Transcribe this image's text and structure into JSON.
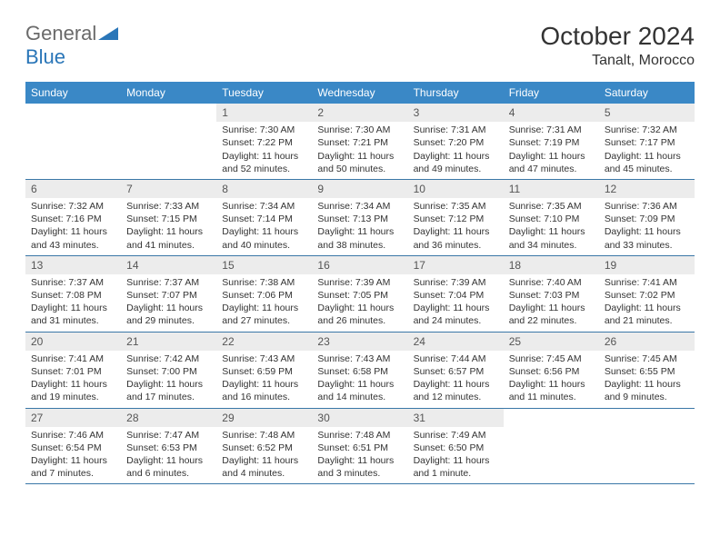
{
  "logo": {
    "text_a": "General",
    "text_b": "Blue"
  },
  "title": "October 2024",
  "location": "Tanalt, Morocco",
  "colors": {
    "header_bg": "#3a88c6",
    "header_text": "#ffffff",
    "row_divider": "#3a77a7",
    "daynum_bg": "#ececec",
    "text": "#333333",
    "logo_gray": "#6a6a6a",
    "logo_blue": "#2a76b8"
  },
  "days_of_week": [
    "Sunday",
    "Monday",
    "Tuesday",
    "Wednesday",
    "Thursday",
    "Friday",
    "Saturday"
  ],
  "weeks": [
    [
      null,
      null,
      {
        "n": "1",
        "sr": "Sunrise: 7:30 AM",
        "ss": "Sunset: 7:22 PM",
        "dl": "Daylight: 11 hours and 52 minutes."
      },
      {
        "n": "2",
        "sr": "Sunrise: 7:30 AM",
        "ss": "Sunset: 7:21 PM",
        "dl": "Daylight: 11 hours and 50 minutes."
      },
      {
        "n": "3",
        "sr": "Sunrise: 7:31 AM",
        "ss": "Sunset: 7:20 PM",
        "dl": "Daylight: 11 hours and 49 minutes."
      },
      {
        "n": "4",
        "sr": "Sunrise: 7:31 AM",
        "ss": "Sunset: 7:19 PM",
        "dl": "Daylight: 11 hours and 47 minutes."
      },
      {
        "n": "5",
        "sr": "Sunrise: 7:32 AM",
        "ss": "Sunset: 7:17 PM",
        "dl": "Daylight: 11 hours and 45 minutes."
      }
    ],
    [
      {
        "n": "6",
        "sr": "Sunrise: 7:32 AM",
        "ss": "Sunset: 7:16 PM",
        "dl": "Daylight: 11 hours and 43 minutes."
      },
      {
        "n": "7",
        "sr": "Sunrise: 7:33 AM",
        "ss": "Sunset: 7:15 PM",
        "dl": "Daylight: 11 hours and 41 minutes."
      },
      {
        "n": "8",
        "sr": "Sunrise: 7:34 AM",
        "ss": "Sunset: 7:14 PM",
        "dl": "Daylight: 11 hours and 40 minutes."
      },
      {
        "n": "9",
        "sr": "Sunrise: 7:34 AM",
        "ss": "Sunset: 7:13 PM",
        "dl": "Daylight: 11 hours and 38 minutes."
      },
      {
        "n": "10",
        "sr": "Sunrise: 7:35 AM",
        "ss": "Sunset: 7:12 PM",
        "dl": "Daylight: 11 hours and 36 minutes."
      },
      {
        "n": "11",
        "sr": "Sunrise: 7:35 AM",
        "ss": "Sunset: 7:10 PM",
        "dl": "Daylight: 11 hours and 34 minutes."
      },
      {
        "n": "12",
        "sr": "Sunrise: 7:36 AM",
        "ss": "Sunset: 7:09 PM",
        "dl": "Daylight: 11 hours and 33 minutes."
      }
    ],
    [
      {
        "n": "13",
        "sr": "Sunrise: 7:37 AM",
        "ss": "Sunset: 7:08 PM",
        "dl": "Daylight: 11 hours and 31 minutes."
      },
      {
        "n": "14",
        "sr": "Sunrise: 7:37 AM",
        "ss": "Sunset: 7:07 PM",
        "dl": "Daylight: 11 hours and 29 minutes."
      },
      {
        "n": "15",
        "sr": "Sunrise: 7:38 AM",
        "ss": "Sunset: 7:06 PM",
        "dl": "Daylight: 11 hours and 27 minutes."
      },
      {
        "n": "16",
        "sr": "Sunrise: 7:39 AM",
        "ss": "Sunset: 7:05 PM",
        "dl": "Daylight: 11 hours and 26 minutes."
      },
      {
        "n": "17",
        "sr": "Sunrise: 7:39 AM",
        "ss": "Sunset: 7:04 PM",
        "dl": "Daylight: 11 hours and 24 minutes."
      },
      {
        "n": "18",
        "sr": "Sunrise: 7:40 AM",
        "ss": "Sunset: 7:03 PM",
        "dl": "Daylight: 11 hours and 22 minutes."
      },
      {
        "n": "19",
        "sr": "Sunrise: 7:41 AM",
        "ss": "Sunset: 7:02 PM",
        "dl": "Daylight: 11 hours and 21 minutes."
      }
    ],
    [
      {
        "n": "20",
        "sr": "Sunrise: 7:41 AM",
        "ss": "Sunset: 7:01 PM",
        "dl": "Daylight: 11 hours and 19 minutes."
      },
      {
        "n": "21",
        "sr": "Sunrise: 7:42 AM",
        "ss": "Sunset: 7:00 PM",
        "dl": "Daylight: 11 hours and 17 minutes."
      },
      {
        "n": "22",
        "sr": "Sunrise: 7:43 AM",
        "ss": "Sunset: 6:59 PM",
        "dl": "Daylight: 11 hours and 16 minutes."
      },
      {
        "n": "23",
        "sr": "Sunrise: 7:43 AM",
        "ss": "Sunset: 6:58 PM",
        "dl": "Daylight: 11 hours and 14 minutes."
      },
      {
        "n": "24",
        "sr": "Sunrise: 7:44 AM",
        "ss": "Sunset: 6:57 PM",
        "dl": "Daylight: 11 hours and 12 minutes."
      },
      {
        "n": "25",
        "sr": "Sunrise: 7:45 AM",
        "ss": "Sunset: 6:56 PM",
        "dl": "Daylight: 11 hours and 11 minutes."
      },
      {
        "n": "26",
        "sr": "Sunrise: 7:45 AM",
        "ss": "Sunset: 6:55 PM",
        "dl": "Daylight: 11 hours and 9 minutes."
      }
    ],
    [
      {
        "n": "27",
        "sr": "Sunrise: 7:46 AM",
        "ss": "Sunset: 6:54 PM",
        "dl": "Daylight: 11 hours and 7 minutes."
      },
      {
        "n": "28",
        "sr": "Sunrise: 7:47 AM",
        "ss": "Sunset: 6:53 PM",
        "dl": "Daylight: 11 hours and 6 minutes."
      },
      {
        "n": "29",
        "sr": "Sunrise: 7:48 AM",
        "ss": "Sunset: 6:52 PM",
        "dl": "Daylight: 11 hours and 4 minutes."
      },
      {
        "n": "30",
        "sr": "Sunrise: 7:48 AM",
        "ss": "Sunset: 6:51 PM",
        "dl": "Daylight: 11 hours and 3 minutes."
      },
      {
        "n": "31",
        "sr": "Sunrise: 7:49 AM",
        "ss": "Sunset: 6:50 PM",
        "dl": "Daylight: 11 hours and 1 minute."
      },
      null,
      null
    ]
  ]
}
